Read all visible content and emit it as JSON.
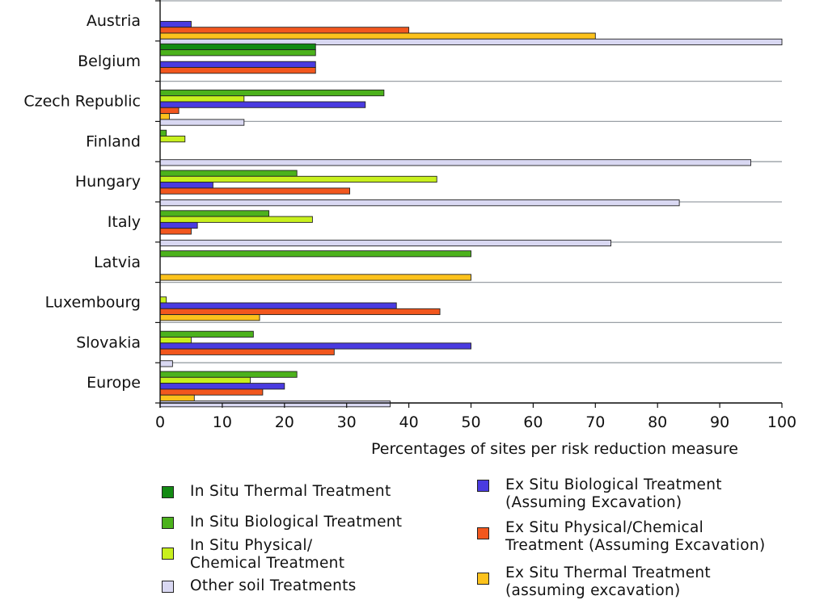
{
  "chart_data": {
    "type": "bar",
    "orientation": "horizontal",
    "title": "",
    "xlabel": "Percentages of sites per risk reduction measure",
    "ylabel": "",
    "xlim": [
      0,
      100
    ],
    "xticks": [
      "0",
      "10",
      "20",
      "30",
      "40",
      "50",
      "60",
      "70",
      "80",
      "90",
      "100"
    ],
    "grid": "horizontal separators between categories",
    "categories": [
      "Austria",
      "Belgium",
      "Czech Republic",
      "Finland",
      "Hungary",
      "Italy",
      "Latvia",
      "Luxembourg",
      "Slovakia",
      "Europe"
    ],
    "series": [
      {
        "name": "In Situ Thermal Treatment",
        "color": "#138a13",
        "values": [
          0,
          25,
          0,
          0,
          0,
          0,
          0,
          0,
          0,
          0
        ]
      },
      {
        "name": "In Situ Biological Treatment",
        "color": "#4cb21c",
        "values": [
          0,
          25,
          36,
          1,
          22,
          17.5,
          50,
          0,
          15,
          22
        ]
      },
      {
        "name": "In Situ Physical/ Chemical Treatment",
        "color": "#c8f01e",
        "values": [
          0,
          0,
          13.5,
          4,
          44.5,
          24.5,
          0,
          1,
          5,
          14.5
        ]
      },
      {
        "name": "Ex Situ Biological Treatment (Assuming Excavation)",
        "color": "#4a3be0",
        "values": [
          5,
          25,
          33,
          0,
          8.5,
          6,
          0,
          38,
          50,
          20
        ]
      },
      {
        "name": "Ex Situ Physical/Chemical Treatment (Assuming Excavation)",
        "color": "#f2571e",
        "values": [
          40,
          25,
          3,
          0,
          30.5,
          5,
          0,
          45,
          28,
          16.5
        ]
      },
      {
        "name": "Ex Situ Thermal Treatment (assuming excavation)",
        "color": "#fcc21c",
        "values": [
          70,
          0,
          1.5,
          0,
          0,
          0,
          50,
          16,
          0,
          5.5
        ]
      },
      {
        "name": "Other soil Treatments",
        "color": "#d9d8f2",
        "values": [
          100,
          0,
          13.5,
          95,
          83.5,
          72.5,
          0,
          0,
          2,
          37
        ]
      }
    ],
    "legend_position": "bottom"
  },
  "legend": {
    "items": [
      {
        "label": "In Situ Thermal Treatment",
        "color": "#138a13"
      },
      {
        "label": "In Situ Biological Treatment",
        "color": "#4cb21c"
      },
      {
        "label": "In Situ Physical/\nChemical Treatment",
        "color": "#c8f01e"
      },
      {
        "label": "Other soil Treatments",
        "color": "#d9d8f2"
      },
      {
        "label": "Ex Situ Biological Treatment\n(Assuming Excavation)",
        "color": "#4a3be0"
      },
      {
        "label": "Ex Situ Physical/Chemical\nTreatment (Assuming Excavation)",
        "color": "#f2571e"
      },
      {
        "label": "Ex Situ Thermal Treatment\n(assuming excavation)",
        "color": "#fcc21c"
      }
    ]
  }
}
